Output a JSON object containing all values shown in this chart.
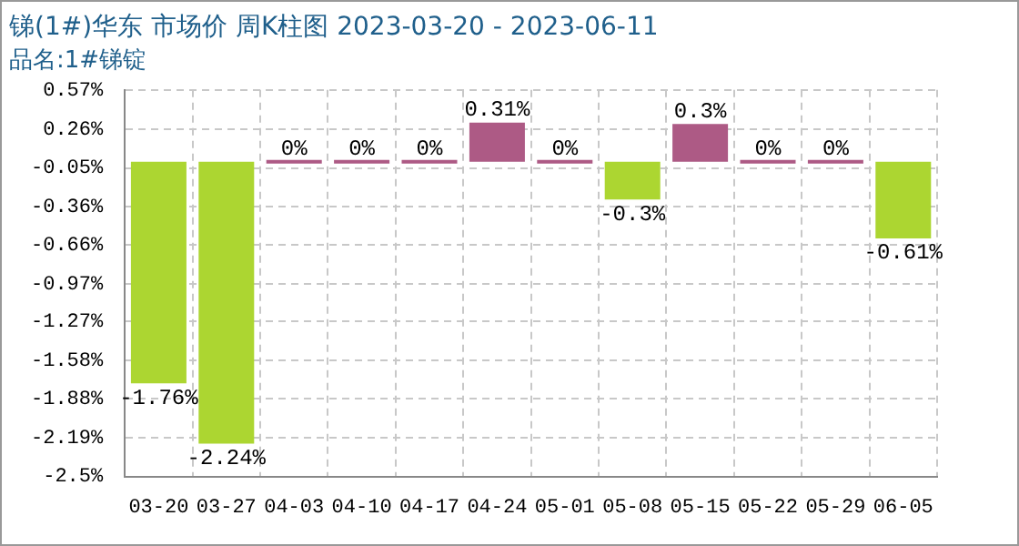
{
  "chart_data": {
    "type": "bar",
    "title": "锑(1#)华东 市场价 周K柱图 2023-03-20 - 2023-06-11",
    "subtitle": "品名:1#锑锭",
    "categories": [
      "03-20",
      "03-27",
      "04-03",
      "04-10",
      "04-17",
      "04-24",
      "05-01",
      "05-08",
      "05-15",
      "05-22",
      "05-29",
      "06-05"
    ],
    "values": [
      -1.76,
      -2.24,
      0,
      0,
      0,
      0.31,
      0,
      -0.3,
      0.3,
      0,
      0,
      -0.61
    ],
    "colors": [
      "#acd631",
      "#acd631",
      "#ad5a85",
      "#ad5a85",
      "#ad5a85",
      "#ad5a85",
      "#ad5a85",
      "#acd631",
      "#ad5a85",
      "#ad5a85",
      "#ad5a85",
      "#acd631"
    ],
    "value_labels": [
      "-1.76%",
      "-2.24%",
      "0%",
      "0%",
      "0%",
      "0.31%",
      "0%",
      "-0.3%",
      "0.3%",
      "0%",
      "0%",
      "-0.61%"
    ],
    "ylim": [
      -2.5,
      0.57
    ],
    "yticks": [
      {
        "value": 0.57,
        "label": "0.57%"
      },
      {
        "value": 0.26,
        "label": "0.26%"
      },
      {
        "value": -0.05,
        "label": "-0.05%"
      },
      {
        "value": -0.36,
        "label": "-0.36%"
      },
      {
        "value": -0.66,
        "label": "-0.66%"
      },
      {
        "value": -0.97,
        "label": "-0.97%"
      },
      {
        "value": -1.27,
        "label": "-1.27%"
      },
      {
        "value": -1.58,
        "label": "-1.58%"
      },
      {
        "value": -1.88,
        "label": "-1.88%"
      },
      {
        "value": -2.19,
        "label": "-2.19%"
      },
      {
        "value": -2.5,
        "label": "-2.5%"
      }
    ],
    "grid": true,
    "legend": false
  }
}
